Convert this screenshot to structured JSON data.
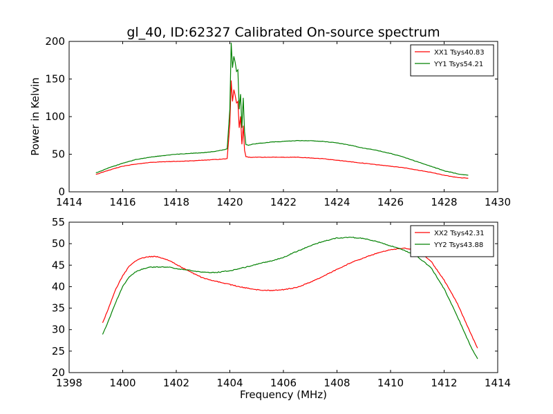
{
  "figure_title": "gl_40, ID:62327 Calibrated On-source spectrum",
  "colors": {
    "red": "#ff0000",
    "green": "#008000"
  },
  "chart_data": [
    {
      "type": "line",
      "title": "gl_40, ID:62327 Calibrated On-source spectrum",
      "xlabel": "",
      "ylabel": "Power in Kelvin",
      "xlim": [
        1414,
        1430
      ],
      "ylim": [
        0,
        200
      ],
      "xticks": [
        1414,
        1416,
        1418,
        1420,
        1422,
        1424,
        1426,
        1428,
        1430
      ],
      "yticks": [
        0,
        50,
        100,
        150,
        200
      ],
      "grid": false,
      "legend_position": "top-right",
      "series": [
        {
          "name": "XX1 Tsys40.83",
          "color": "#ff0000",
          "x": [
            1415.0,
            1415.5,
            1416.0,
            1416.5,
            1417.0,
            1417.5,
            1418.0,
            1418.5,
            1419.0,
            1419.5,
            1419.9,
            1420.0,
            1420.05,
            1420.1,
            1420.15,
            1420.2,
            1420.25,
            1420.3,
            1420.35,
            1420.4,
            1420.45,
            1420.5,
            1420.55,
            1420.6,
            1420.7,
            1420.8,
            1421.0,
            1421.5,
            1422.0,
            1422.5,
            1423.0,
            1423.5,
            1424.0,
            1424.5,
            1425.0,
            1425.5,
            1426.0,
            1426.5,
            1427.0,
            1427.5,
            1428.0,
            1428.5,
            1428.9
          ],
          "y": [
            23,
            29,
            34,
            37,
            39,
            40,
            40.5,
            41,
            42,
            43,
            44,
            90,
            148,
            120,
            136,
            128,
            118,
            120,
            85,
            100,
            63,
            88,
            55,
            47,
            46,
            46,
            46,
            46,
            46,
            46,
            45,
            44,
            42,
            40,
            38,
            36,
            34,
            32,
            29,
            26,
            22,
            19,
            18
          ]
        },
        {
          "name": "YY1 Tsys54.21",
          "color": "#008000",
          "x": [
            1415.0,
            1415.5,
            1416.0,
            1416.5,
            1417.0,
            1417.5,
            1418.0,
            1418.5,
            1419.0,
            1419.5,
            1419.9,
            1420.0,
            1420.05,
            1420.1,
            1420.15,
            1420.2,
            1420.25,
            1420.3,
            1420.35,
            1420.4,
            1420.45,
            1420.5,
            1420.55,
            1420.6,
            1420.7,
            1420.8,
            1421.0,
            1421.5,
            1422.0,
            1422.5,
            1423.0,
            1423.5,
            1424.0,
            1424.5,
            1425.0,
            1425.5,
            1426.0,
            1426.5,
            1427.0,
            1427.5,
            1428.0,
            1428.5,
            1428.9
          ],
          "y": [
            25,
            32,
            38,
            43,
            46,
            48,
            50,
            51,
            52,
            54,
            57,
            110,
            198,
            165,
            180,
            172,
            160,
            162,
            110,
            130,
            85,
            125,
            80,
            63,
            62,
            63,
            64,
            66,
            67,
            68,
            68,
            67,
            65,
            62,
            58,
            55,
            51,
            46,
            40,
            34,
            28,
            24,
            22
          ]
        }
      ]
    },
    {
      "type": "line",
      "title": "",
      "xlabel": "Frequency (MHz)",
      "ylabel": "",
      "xlim": [
        1398,
        1414
      ],
      "ylim": [
        20,
        55
      ],
      "xticks": [
        1398,
        1400,
        1402,
        1404,
        1406,
        1408,
        1410,
        1412,
        1414
      ],
      "yticks": [
        20,
        25,
        30,
        35,
        40,
        45,
        50,
        55
      ],
      "grid": false,
      "legend_position": "top-right",
      "series": [
        {
          "name": "XX2 Tsys42.31",
          "color": "#ff0000",
          "x": [
            1399.25,
            1399.5,
            1399.75,
            1400.0,
            1400.25,
            1400.5,
            1400.75,
            1401.0,
            1401.25,
            1401.5,
            1401.75,
            1402.0,
            1402.5,
            1403.0,
            1403.5,
            1404.0,
            1404.5,
            1405.0,
            1405.5,
            1406.0,
            1406.5,
            1407.0,
            1407.5,
            1408.0,
            1408.5,
            1409.0,
            1409.5,
            1410.0,
            1410.5,
            1411.0,
            1411.5,
            1412.0,
            1412.5,
            1413.0,
            1413.25
          ],
          "y": [
            31.5,
            35.5,
            39.5,
            42.5,
            44.8,
            46.0,
            46.7,
            47.0,
            47.0,
            46.6,
            46.0,
            45.2,
            43.5,
            42.0,
            41.2,
            40.5,
            39.8,
            39.3,
            39.1,
            39.3,
            39.8,
            41.0,
            42.5,
            44.0,
            45.5,
            46.7,
            47.8,
            48.6,
            49.0,
            48.4,
            46.0,
            41.5,
            36.0,
            29.0,
            25.7
          ]
        },
        {
          "name": "YY2 Tsys43.88",
          "color": "#008000",
          "x": [
            1399.25,
            1399.5,
            1399.75,
            1400.0,
            1400.25,
            1400.5,
            1400.75,
            1401.0,
            1401.25,
            1401.5,
            1401.75,
            1402.0,
            1402.5,
            1403.0,
            1403.5,
            1404.0,
            1404.5,
            1405.0,
            1405.5,
            1406.0,
            1406.5,
            1407.0,
            1407.5,
            1408.0,
            1408.5,
            1409.0,
            1409.5,
            1410.0,
            1410.5,
            1411.0,
            1411.5,
            1412.0,
            1412.5,
            1413.0,
            1413.25
          ],
          "y": [
            28.8,
            32.5,
            36.5,
            40.0,
            42.3,
            43.5,
            44.1,
            44.5,
            44.6,
            44.6,
            44.5,
            44.2,
            43.8,
            43.3,
            43.3,
            43.7,
            44.4,
            45.2,
            45.9,
            46.8,
            48.2,
            49.5,
            50.6,
            51.3,
            51.5,
            51.2,
            50.5,
            49.5,
            48.5,
            47.0,
            44.5,
            39.5,
            33.0,
            26.0,
            23.2
          ]
        }
      ]
    }
  ]
}
